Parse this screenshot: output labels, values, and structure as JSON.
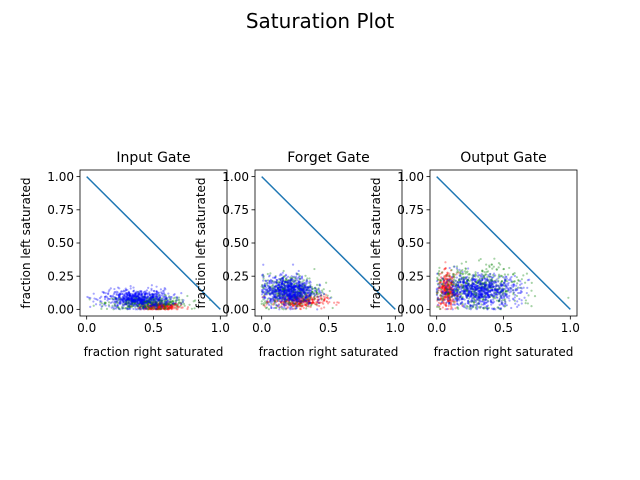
{
  "figure": {
    "title": "Saturation Plot"
  },
  "colors": {
    "diagonal": "#1f77b4",
    "red": "#ff0000",
    "green": "#008000",
    "blue": "#0000ff",
    "axis": "#000000"
  },
  "chart_data": [
    {
      "type": "scatter",
      "title": "Input Gate",
      "xlabel": "fraction right saturated",
      "ylabel": "fraction left saturated",
      "xlim": [
        -0.05,
        1.05
      ],
      "ylim": [
        -0.05,
        1.05
      ],
      "xticks": [
        0.0,
        0.5,
        1.0
      ],
      "xtick_labels": [
        "0.0",
        "0.5",
        "1.0"
      ],
      "yticks": [
        0.0,
        0.25,
        0.5,
        0.75,
        1.0
      ],
      "ytick_labels": [
        "0.00",
        "0.25",
        "0.50",
        "0.75",
        "1.00"
      ],
      "line": {
        "x": [
          0,
          1
        ],
        "y": [
          1,
          0
        ]
      },
      "grid": false,
      "clusters": [
        {
          "color": "red",
          "cx": 0.55,
          "cy": 0.02,
          "rx": 0.15,
          "ry": 0.03,
          "n": 260
        },
        {
          "color": "green",
          "cx": 0.45,
          "cy": 0.05,
          "rx": 0.3,
          "ry": 0.05,
          "n": 420
        },
        {
          "color": "blue",
          "cx": 0.38,
          "cy": 0.08,
          "rx": 0.25,
          "ry": 0.07,
          "n": 620
        }
      ]
    },
    {
      "type": "scatter",
      "title": "Forget Gate",
      "xlabel": "fraction right saturated",
      "ylabel": "fraction left saturated",
      "xlim": [
        -0.05,
        1.05
      ],
      "ylim": [
        -0.05,
        1.05
      ],
      "xticks": [
        0.0,
        0.5,
        1.0
      ],
      "xtick_labels": [
        "0.0",
        "0.5",
        "1.0"
      ],
      "yticks": [
        0.0,
        0.25,
        0.5,
        0.75,
        1.0
      ],
      "ytick_labels": [
        "0.00",
        "0.25",
        "0.50",
        "0.75",
        "1.00"
      ],
      "line": {
        "x": [
          0,
          1
        ],
        "y": [
          1,
          0
        ]
      },
      "grid": false,
      "clusters": [
        {
          "color": "red",
          "cx": 0.28,
          "cy": 0.06,
          "rx": 0.2,
          "ry": 0.05,
          "n": 320
        },
        {
          "color": "green",
          "cx": 0.22,
          "cy": 0.14,
          "rx": 0.22,
          "ry": 0.12,
          "n": 460
        },
        {
          "color": "blue",
          "cx": 0.2,
          "cy": 0.14,
          "rx": 0.19,
          "ry": 0.11,
          "n": 720
        }
      ]
    },
    {
      "type": "scatter",
      "title": "Output Gate",
      "xlabel": "fraction right saturated",
      "ylabel": "fraction left saturated",
      "xlim": [
        -0.05,
        1.05
      ],
      "ylim": [
        -0.05,
        1.05
      ],
      "xticks": [
        0.0,
        0.5,
        1.0
      ],
      "xtick_labels": [
        "0.0",
        "0.5",
        "1.0"
      ],
      "yticks": [
        0.0,
        0.25,
        0.5,
        0.75,
        1.0
      ],
      "ytick_labels": [
        "0.00",
        "0.25",
        "0.50",
        "0.75",
        "1.00"
      ],
      "line": {
        "x": [
          0,
          1
        ],
        "y": [
          1,
          0
        ]
      },
      "grid": false,
      "clusters": [
        {
          "color": "red",
          "cx": 0.08,
          "cy": 0.14,
          "rx": 0.07,
          "ry": 0.13,
          "n": 320
        },
        {
          "color": "green",
          "cx": 0.3,
          "cy": 0.16,
          "rx": 0.32,
          "ry": 0.16,
          "n": 560
        },
        {
          "color": "blue",
          "cx": 0.32,
          "cy": 0.14,
          "rx": 0.3,
          "ry": 0.12,
          "n": 780
        }
      ]
    }
  ]
}
